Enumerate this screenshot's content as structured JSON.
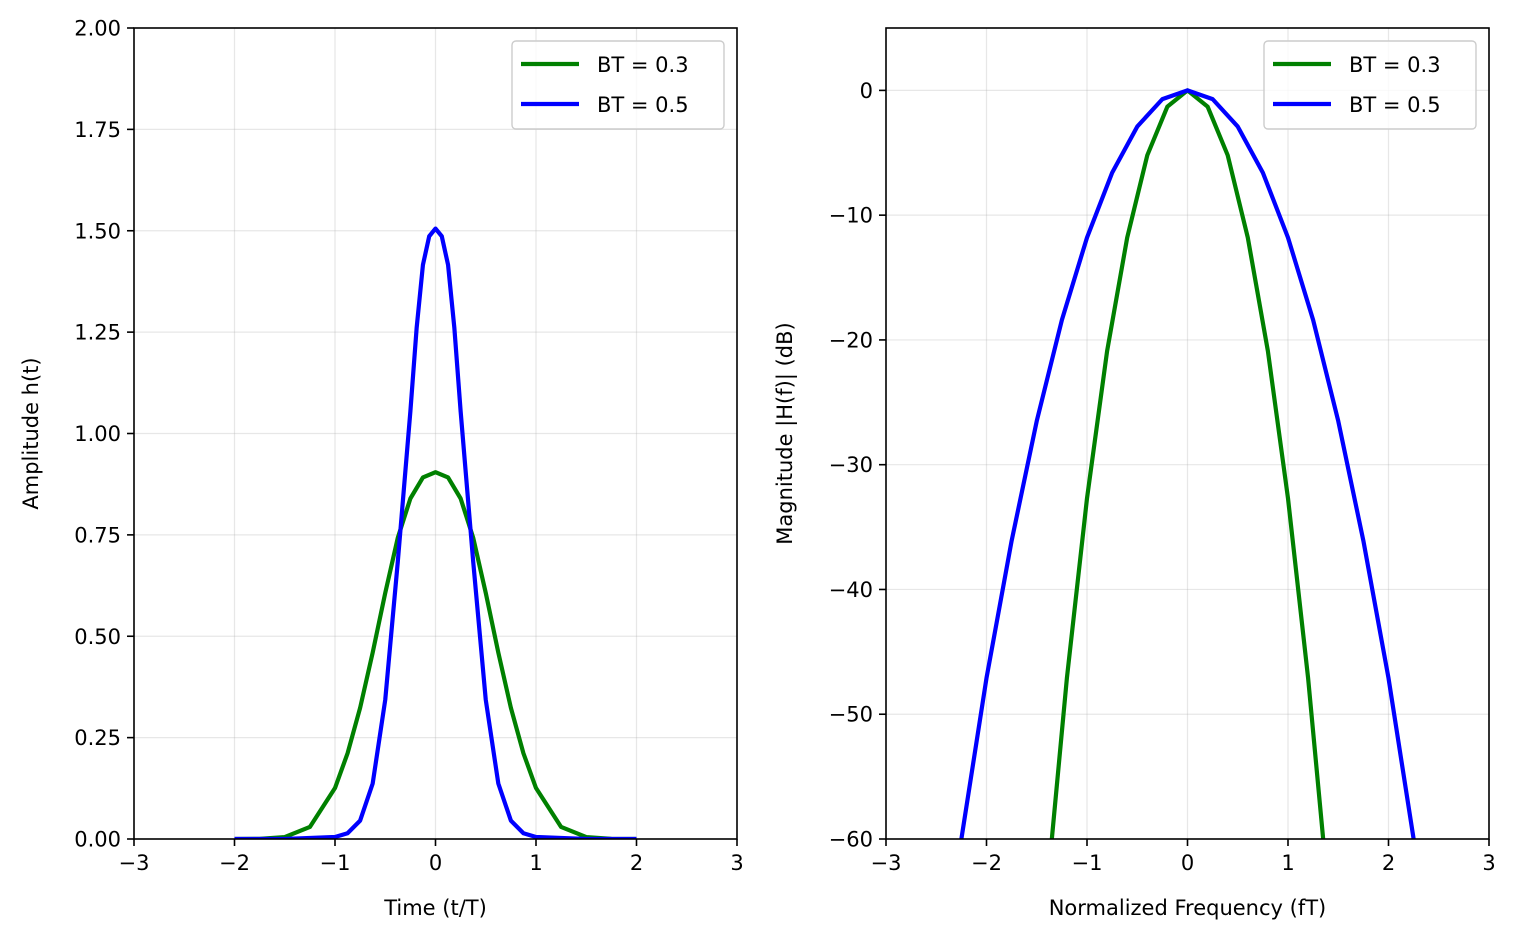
{
  "chart_data": [
    {
      "type": "line",
      "title": "",
      "xlabel": "Time (t/T)",
      "ylabel": "Amplitude h(t)",
      "xlim": [
        -3,
        3
      ],
      "ylim": [
        0,
        2
      ],
      "x_ticks": [
        -3,
        -2,
        -1,
        0,
        1,
        2,
        3
      ],
      "x_tick_labels": [
        "−3",
        "−2",
        "−1",
        "0",
        "1",
        "2",
        "3"
      ],
      "y_ticks": [
        0,
        0.25,
        0.5,
        0.75,
        1.0,
        1.25,
        1.5,
        1.75,
        2.0
      ],
      "y_tick_labels": [
        "0.00",
        "0.25",
        "0.50",
        "0.75",
        "1.00",
        "1.25",
        "1.50",
        "1.75",
        "2.00"
      ],
      "grid": true,
      "legend_position": "top-right",
      "series": [
        {
          "name": "BT = 0.3",
          "color": "#008000",
          "x": [
            -2.0,
            -1.75,
            -1.5,
            -1.25,
            -1.0,
            -0.875,
            -0.75,
            -0.625,
            -0.5,
            -0.375,
            -0.25,
            -0.125,
            0.0,
            0.125,
            0.25,
            0.375,
            0.5,
            0.625,
            0.75,
            0.875,
            1.0,
            1.25,
            1.5,
            1.75,
            2.0
          ],
          "values": [
            0.0,
            0.0005,
            0.0048,
            0.0297,
            0.1257,
            0.2113,
            0.3235,
            0.4598,
            0.6069,
            0.7429,
            0.8397,
            0.8916,
            0.9045,
            0.8916,
            0.8397,
            0.7429,
            0.6069,
            0.4598,
            0.3235,
            0.2113,
            0.1257,
            0.0297,
            0.0048,
            0.0005,
            0.0
          ]
        },
        {
          "name": "BT = 0.5",
          "color": "#0000ff",
          "x": [
            -2.0,
            -1.5,
            -1.0,
            -0.875,
            -0.75,
            -0.625,
            -0.5,
            -0.375,
            -0.25,
            -0.1875,
            -0.125,
            -0.0625,
            0.0,
            0.0625,
            0.125,
            0.1875,
            0.25,
            0.375,
            0.5,
            0.625,
            0.75,
            0.875,
            1.0,
            1.5,
            2.0
          ],
          "values": [
            0.0,
            0.0,
            0.005,
            0.0142,
            0.0454,
            0.1369,
            0.3434,
            0.6843,
            1.0548,
            1.2608,
            1.4159,
            1.4864,
            1.5054,
            1.4864,
            1.4159,
            1.2608,
            1.0548,
            0.6843,
            0.3434,
            0.1369,
            0.0454,
            0.0142,
            0.005,
            0.0,
            0.0
          ]
        }
      ]
    },
    {
      "type": "line",
      "title": "",
      "xlabel": "Normalized Frequency (fT)",
      "ylabel": "Magnitude |H(f)| (dB)",
      "xlim": [
        -3,
        3
      ],
      "ylim": [
        -60,
        5
      ],
      "x_ticks": [
        -3,
        -2,
        -1,
        0,
        1,
        2,
        3
      ],
      "x_tick_labels": [
        "−3",
        "−2",
        "−1",
        "0",
        "1",
        "2",
        "3"
      ],
      "y_ticks": [
        -60,
        -50,
        -40,
        -30,
        -20,
        -10,
        0
      ],
      "y_tick_labels": [
        "−60",
        "−50",
        "−40",
        "−30",
        "−20",
        "−10",
        "0"
      ],
      "grid": true,
      "legend_position": "top-right",
      "series": [
        {
          "name": "BT = 0.3",
          "color": "#008000",
          "x": [
            -1.35,
            -1.2,
            -1.0,
            -0.8,
            -0.6,
            -0.4,
            -0.2,
            0.0,
            0.2,
            0.4,
            0.6,
            0.8,
            1.0,
            1.2,
            1.35
          ],
          "values": [
            -60.0,
            -47.1,
            -32.7,
            -20.9,
            -11.8,
            -5.2,
            -1.3,
            0.0,
            -1.3,
            -5.2,
            -11.8,
            -20.9,
            -32.7,
            -47.1,
            -60.0
          ]
        },
        {
          "name": "BT = 0.5",
          "color": "#0000ff",
          "x": [
            -2.25,
            -2.0,
            -1.75,
            -1.5,
            -1.25,
            -1.0,
            -0.75,
            -0.5,
            -0.25,
            0.0,
            0.25,
            0.5,
            0.75,
            1.0,
            1.25,
            1.5,
            1.75,
            2.0,
            2.25
          ],
          "values": [
            -60.0,
            -47.1,
            -36.1,
            -26.5,
            -18.4,
            -11.8,
            -6.6,
            -2.9,
            -0.7,
            0.0,
            -0.7,
            -2.9,
            -6.6,
            -11.8,
            -18.4,
            -26.5,
            -36.1,
            -47.1,
            -60.0
          ]
        }
      ]
    }
  ]
}
